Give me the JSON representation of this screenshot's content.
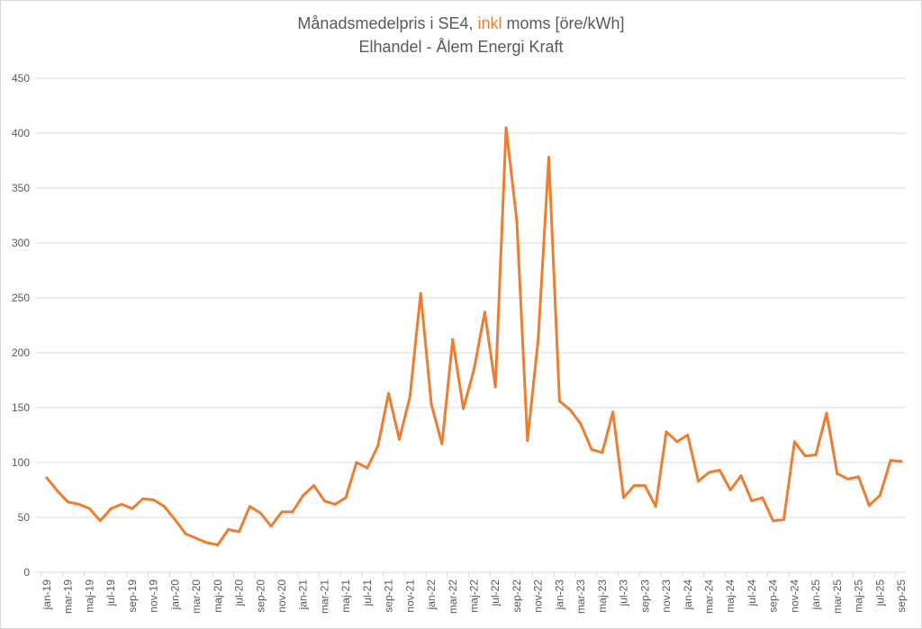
{
  "chart_data": {
    "type": "line",
    "title_parts": [
      "Månadsmedelpris i SE4, ",
      "inkl",
      " moms [öre/kWh]"
    ],
    "subtitle": "Elhandel - Ålem Energi Kraft",
    "xlabel": "",
    "ylabel": "",
    "ylim": [
      0,
      450
    ],
    "yticks": [
      0,
      50,
      100,
      150,
      200,
      250,
      300,
      350,
      400,
      450
    ],
    "grid": true,
    "legend": "none",
    "x": [
      "jan-19",
      "feb-19",
      "mar-19",
      "apr-19",
      "maj-19",
      "jun-19",
      "jul-19",
      "aug-19",
      "sep-19",
      "okt-19",
      "nov-19",
      "dec-19",
      "jan-20",
      "feb-20",
      "mar-20",
      "apr-20",
      "maj-20",
      "jun-20",
      "jul-20",
      "aug-20",
      "sep-20",
      "okt-20",
      "nov-20",
      "dec-20",
      "jan-21",
      "feb-21",
      "mar-21",
      "apr-21",
      "maj-21",
      "jun-21",
      "jul-21",
      "aug-21",
      "sep-21",
      "okt-21",
      "nov-21",
      "dec-21",
      "jan-22",
      "feb-22",
      "mar-22",
      "apr-22",
      "maj-22",
      "jun-22",
      "jul-22",
      "aug-22",
      "sep-22",
      "okt-22",
      "nov-22",
      "dec-22",
      "jan-23",
      "feb-23",
      "mar-23",
      "apr-23",
      "maj-23",
      "jun-23",
      "jul-23",
      "aug-23",
      "sep-23",
      "okt-23",
      "nov-23",
      "dec-23",
      "jan-24",
      "feb-24",
      "mar-24",
      "apr-24",
      "maj-24",
      "jun-24",
      "jul-24",
      "aug-24",
      "sep-24",
      "okt-24",
      "nov-24",
      "dec-24",
      "jan-25",
      "feb-25",
      "mar-25",
      "apr-25",
      "maj-25",
      "jun-25",
      "jul-25",
      "aug-25",
      "sep-25"
    ],
    "series": [
      {
        "name": "SE4 inkl moms",
        "color": "#ed7d31",
        "values": [
          86,
          74,
          64,
          62,
          58,
          47,
          58,
          62,
          58,
          67,
          66,
          60,
          48,
          35,
          31,
          27,
          25,
          39,
          37,
          60,
          54,
          42,
          55,
          55,
          70,
          79,
          65,
          62,
          68,
          100,
          95,
          115,
          163,
          121,
          160,
          254,
          153,
          117,
          212,
          149,
          185,
          237,
          169,
          405,
          320,
          120,
          212,
          378,
          156,
          148,
          135,
          112,
          109,
          146,
          68,
          79,
          79,
          60,
          128,
          119,
          125,
          83,
          91,
          93,
          75,
          88,
          65,
          68,
          47,
          48,
          119,
          106,
          107,
          145,
          90,
          85,
          87,
          61,
          70,
          102,
          101
        ]
      }
    ]
  }
}
